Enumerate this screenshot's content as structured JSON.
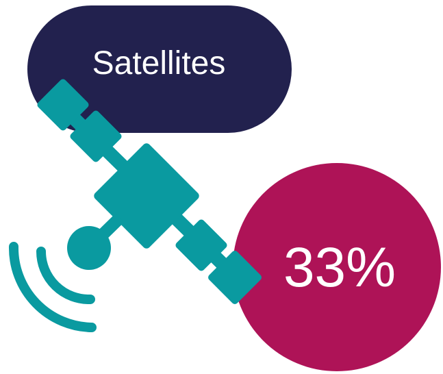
{
  "label": {
    "text": "Satellites",
    "background_color": "#22214e"
  },
  "stat": {
    "value": "33%",
    "background_color": "#ae1357"
  },
  "icon": {
    "name": "satellite-icon",
    "color": "#0a9aa0"
  },
  "text_color": "#ffffff"
}
